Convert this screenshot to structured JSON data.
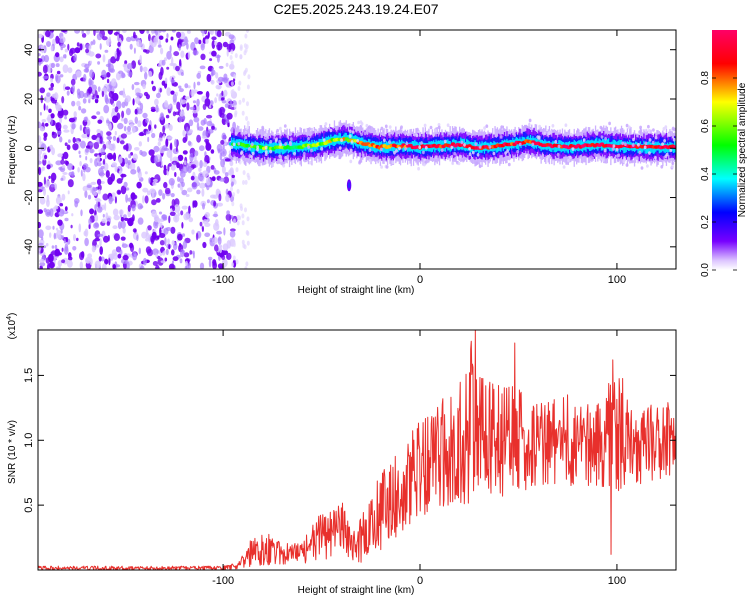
{
  "title": "C2E5.2025.243.19.24.E07",
  "chart_data": [
    {
      "type": "heatmap",
      "xlabel": "Height of straight line (km)",
      "ylabel": "Frequency (Hz)",
      "xlim": [
        -194,
        130
      ],
      "ylim": [
        -49,
        48
      ],
      "xticks": [
        -100,
        0,
        100
      ],
      "xtick_labels": [
        "-100",
        "0",
        "100"
      ],
      "yticks": [
        -40,
        -20,
        0,
        20,
        40
      ],
      "ytick_labels": [
        "-40",
        "-20",
        "0",
        "20",
        "40"
      ],
      "colorbar": {
        "label": "Normalized spectral amplitude",
        "range": [
          0,
          1
        ],
        "ticks": [
          0,
          0.2,
          0.4,
          0.6,
          0.8
        ],
        "tick_labels": [
          "0.0",
          "0.2",
          "0.4",
          "0.6",
          "0.8"
        ],
        "colormap": [
          "#ffffff",
          "#7700ff",
          "#0000ff",
          "#00ffff",
          "#00ff00",
          "#ffff00",
          "#ff0000",
          "#ff0066"
        ]
      },
      "noise_region_x": [
        -194,
        -96
      ],
      "noise_amplitude": 0.15,
      "ridge": {
        "x": [
          -96,
          -85,
          -75,
          -65,
          -55,
          -45,
          -38,
          -30,
          -20,
          -10,
          0,
          10,
          20,
          30,
          40,
          50,
          55,
          65,
          75,
          90,
          110,
          130
        ],
        "y": [
          2,
          0.5,
          0,
          0.5,
          1,
          3,
          4,
          2,
          0.5,
          1,
          0.5,
          1,
          1.5,
          0,
          1,
          2,
          3,
          1,
          0.5,
          1.5,
          0.5,
          0.5
        ],
        "amplitude": [
          0.45,
          0.55,
          0.6,
          0.55,
          0.6,
          0.65,
          0.7,
          0.75,
          0.8,
          0.85,
          0.9,
          0.9,
          0.9,
          0.9,
          0.9,
          0.9,
          0.85,
          0.9,
          0.95,
          0.95,
          0.95,
          0.95
        ]
      },
      "features": [
        {
          "x": -36,
          "y": -15,
          "amplitude": 0.25
        }
      ]
    },
    {
      "type": "line",
      "xlabel": "Height of straight line (km)",
      "ylabel": "SNR (10 * v/v)",
      "y_multiplier": "(x10",
      "y_multiplier_exp": "4",
      "y_multiplier_close": ")",
      "xlim": [
        -194,
        130
      ],
      "ylim": [
        0,
        1.85
      ],
      "xticks": [
        -100,
        0,
        100
      ],
      "xtick_labels": [
        "-100",
        "0",
        "100"
      ],
      "yticks": [
        0.5,
        1.0,
        1.5
      ],
      "ytick_labels": [
        "0.5",
        "1.0",
        "1.5"
      ],
      "series": [
        {
          "name": "SNR",
          "color": "#e8302c",
          "envelope_x": [
            -194,
            -100,
            -92,
            -85,
            -78,
            -70,
            -60,
            -50,
            -40,
            -35,
            -28,
            -20,
            -10,
            0,
            10,
            20,
            26,
            30,
            40,
            50,
            60,
            70,
            80,
            90,
            100,
            110,
            120,
            130
          ],
          "envelope_low": [
            0.0,
            0.0,
            0.01,
            0.03,
            0.04,
            0.04,
            0.05,
            0.07,
            0.1,
            0.05,
            0.06,
            0.12,
            0.28,
            0.4,
            0.45,
            0.5,
            0.5,
            0.6,
            0.55,
            0.6,
            0.65,
            0.65,
            0.65,
            0.65,
            0.6,
            0.65,
            0.7,
            0.7
          ],
          "envelope_high": [
            0.03,
            0.03,
            0.06,
            0.28,
            0.3,
            0.2,
            0.22,
            0.45,
            0.6,
            0.3,
            0.5,
            0.75,
            0.95,
            1.15,
            1.3,
            1.45,
            1.85,
            1.55,
            1.5,
            1.4,
            1.3,
            1.35,
            1.3,
            1.3,
            1.6,
            1.25,
            1.3,
            1.35
          ],
          "spikes": [
            {
              "x": 28,
              "y": 1.85
            },
            {
              "x": 25,
              "y": 1.52
            },
            {
              "x": 48,
              "y": 1.75
            },
            {
              "x": 98,
              "y": 1.62
            },
            {
              "x": 75,
              "y": 1.35
            },
            {
              "x": 97,
              "y": 0.12
            }
          ]
        }
      ]
    }
  ]
}
